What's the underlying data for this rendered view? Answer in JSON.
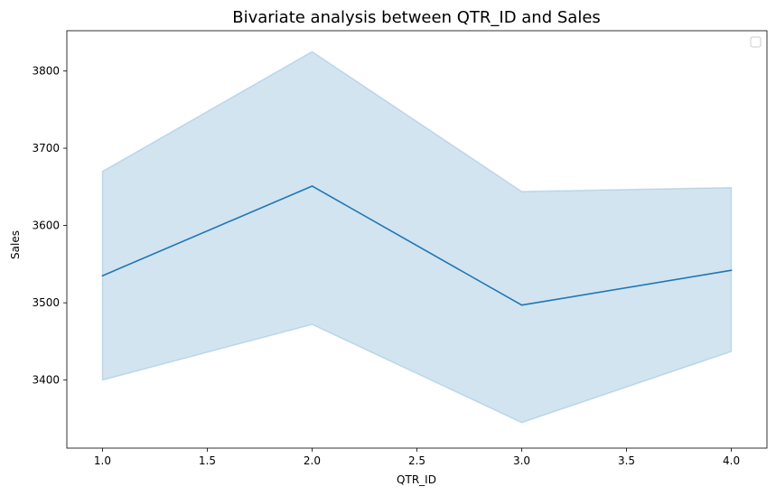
{
  "chart_data": {
    "type": "line",
    "title": "Bivariate analysis between QTR_ID and Sales",
    "xlabel": "QTR_ID",
    "ylabel": "Sales",
    "xlim": [
      0.83,
      4.17
    ],
    "ylim": [
      3312,
      3852
    ],
    "xticks": [
      1.0,
      1.5,
      2.0,
      2.5,
      3.0,
      3.5,
      4.0
    ],
    "xtick_labels": [
      "1.0",
      "1.5",
      "2.0",
      "2.5",
      "3.0",
      "3.5",
      "4.0"
    ],
    "yticks": [
      3400,
      3500,
      3600,
      3700,
      3800
    ],
    "ytick_labels": [
      "3400",
      "3500",
      "3600",
      "3700",
      "3800"
    ],
    "grid": false,
    "legend": {
      "placement": "top-right",
      "entries": []
    },
    "series": [
      {
        "x": [
          1.0,
          2.0,
          3.0,
          4.0
        ],
        "y": [
          3535,
          3651,
          3497,
          3542
        ],
        "ci_lower": [
          3400,
          3472,
          3345,
          3437
        ],
        "ci_upper": [
          3670,
          3825,
          3644,
          3649
        ],
        "color": "#1f77b4",
        "band_color": "#1f77b4"
      }
    ]
  }
}
